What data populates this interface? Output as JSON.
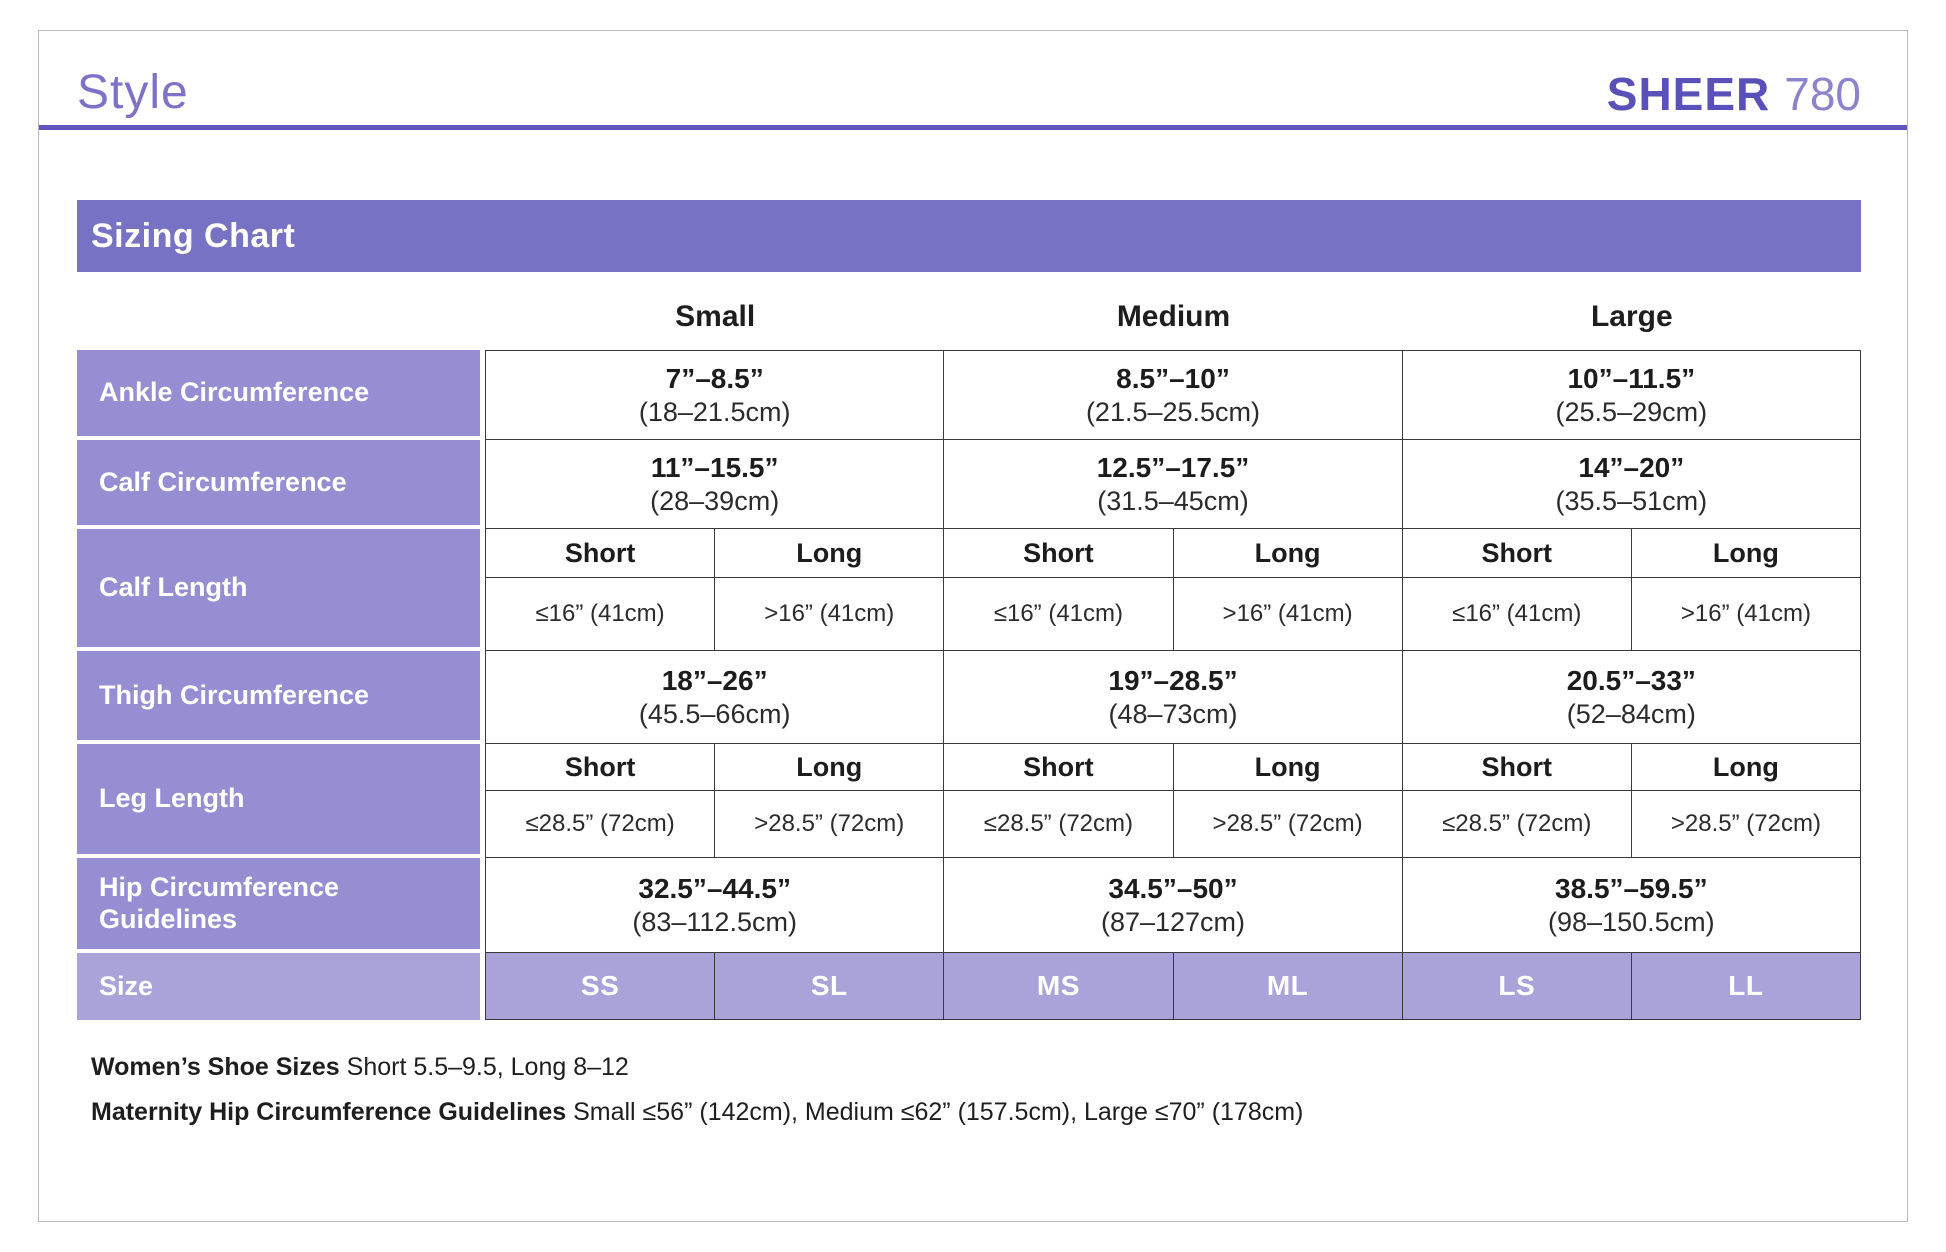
{
  "header": {
    "title": "Style",
    "brand": "SHEER",
    "model": "780"
  },
  "table": {
    "title": "Sizing Chart",
    "sizes": [
      "Small",
      "Medium",
      "Large"
    ],
    "rows": {
      "ankle": {
        "label": "Ankle Circumference",
        "cells": [
          {
            "in": "7”–8.5”",
            "cm": "(18–21.5cm)"
          },
          {
            "in": "8.5”–10”",
            "cm": "(21.5–25.5cm)"
          },
          {
            "in": "10”–11.5”",
            "cm": "(25.5–29cm)"
          }
        ]
      },
      "calf_circ": {
        "label": "Calf Circumference",
        "cells": [
          {
            "in": "11”–15.5”",
            "cm": "(28–39cm)"
          },
          {
            "in": "12.5”–17.5”",
            "cm": "(31.5–45cm)"
          },
          {
            "in": "14”–20”",
            "cm": "(35.5–51cm)"
          }
        ]
      },
      "calf_len": {
        "label": "Calf Length",
        "headers": [
          "Short",
          "Long",
          "Short",
          "Long",
          "Short",
          "Long"
        ],
        "cells": [
          "≤16” (41cm)",
          ">16” (41cm)",
          "≤16” (41cm)",
          ">16” (41cm)",
          "≤16” (41cm)",
          ">16” (41cm)"
        ]
      },
      "thigh": {
        "label": "Thigh Circumference",
        "cells": [
          {
            "in": "18”–26”",
            "cm": "(45.5–66cm)"
          },
          {
            "in": "19”–28.5”",
            "cm": "(48–73cm)"
          },
          {
            "in": "20.5”–33”",
            "cm": "(52–84cm)"
          }
        ]
      },
      "leg_len": {
        "label": "Leg Length",
        "headers": [
          "Short",
          "Long",
          "Short",
          "Long",
          "Short",
          "Long"
        ],
        "cells": [
          "≤28.5” (72cm)",
          ">28.5” (72cm)",
          "≤28.5” (72cm)",
          ">28.5” (72cm)",
          "≤28.5” (72cm)",
          ">28.5” (72cm)"
        ]
      },
      "hip": {
        "label": "Hip Circumference Guidelines",
        "cells": [
          {
            "in": "32.5”–44.5”",
            "cm": "(83–112.5cm)"
          },
          {
            "in": "34.5”–50”",
            "cm": "(87–127cm)"
          },
          {
            "in": "38.5”–59.5”",
            "cm": "(98–150.5cm)"
          }
        ]
      },
      "size": {
        "label": "Size",
        "cells": [
          "SS",
          "SL",
          "MS",
          "ML",
          "LS",
          "LL"
        ]
      }
    }
  },
  "notes": [
    {
      "label": "Women’s Shoe Sizes",
      "text": "Short 5.5–9.5, Long  8–12"
    },
    {
      "label": "Maternity Hip Circumference Guidelines",
      "text": "Small ≤56” (142cm), Medium ≤62” (157.5cm), Large ≤70” (178cm)"
    }
  ],
  "colors": {
    "accent": "#6156bf",
    "title_bar": "#7772c4",
    "label_cell": "#968ed2",
    "size_cell": "#a9a3d9",
    "grid_border": "#3a3a3a"
  }
}
